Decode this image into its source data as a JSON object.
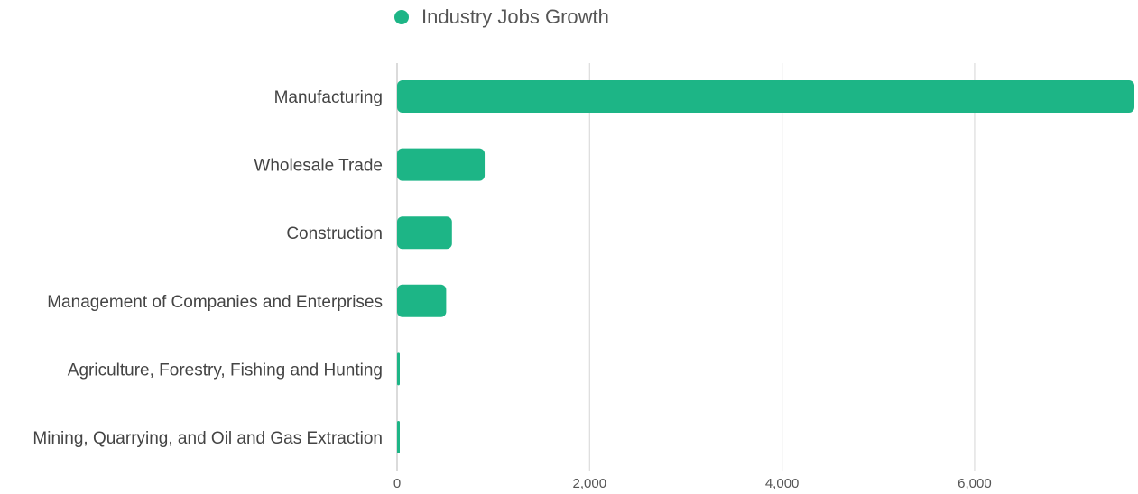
{
  "chart_data": {
    "type": "bar",
    "orientation": "horizontal",
    "categories": [
      "Manufacturing",
      "Wholesale Trade",
      "Construction",
      "Management of Companies and Enterprises",
      "Agriculture, Forestry, Fishing and Hunting",
      "Mining, Quarrying, and Oil and Gas Extraction"
    ],
    "series": [
      {
        "name": "Industry Jobs Growth",
        "color": "#1db586",
        "values": [
          7660,
          910,
          570,
          510,
          25,
          15
        ]
      }
    ],
    "x_ticks": [
      0,
      2000,
      4000,
      6000
    ],
    "x_tick_labels": [
      "0",
      "2,000",
      "4,000",
      "6,000"
    ],
    "xlim": [
      0,
      7660
    ],
    "grid": "vertical",
    "legend_position": "top"
  }
}
